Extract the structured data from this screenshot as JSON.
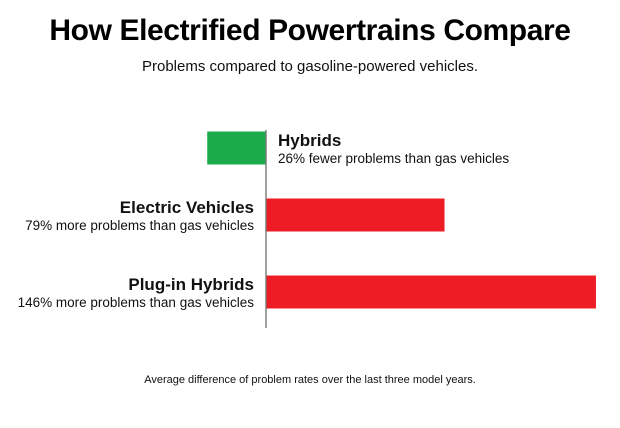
{
  "chart_data": {
    "type": "bar",
    "orientation": "horizontal",
    "title": "How Electrified Powertrains Compare",
    "subtitle": "Problems compared to gasoline-powered vehicles.",
    "categories": [
      "Hybrids",
      "Electric Vehicles",
      "Plug-in Hybrids"
    ],
    "values": [
      -26,
      79,
      146
    ],
    "descriptions": [
      "26% fewer problems than gas vehicles",
      "79% more problems than gas vehicles",
      "146% more problems than gas vehicles"
    ],
    "unit": "%",
    "baseline": 0,
    "xlim": [
      -35,
      160
    ],
    "colors": {
      "negative": "#1aab4a",
      "positive": "#ee1c25",
      "axis": "#777777"
    },
    "footnote": "Average difference of problem rates over the last three model years."
  }
}
